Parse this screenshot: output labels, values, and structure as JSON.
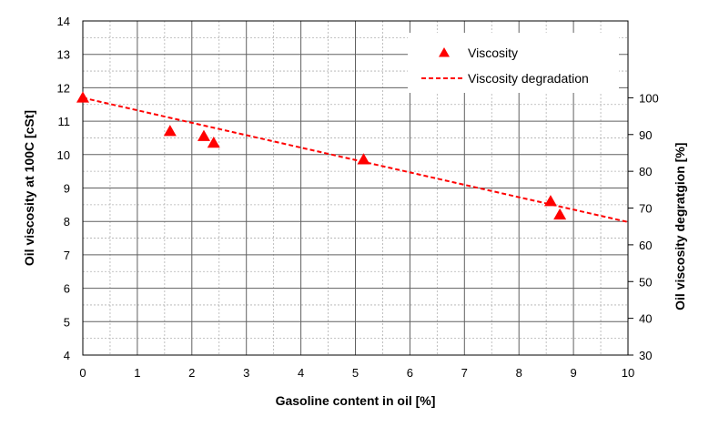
{
  "chart_data": {
    "type": "scatter",
    "xlabel": "Gasoline content in oil [%]",
    "ylabel": "Oil viscosity at 100C  [cSt]",
    "y2label": "Oil viscosity degratgion  [%]",
    "xlim": [
      0,
      10
    ],
    "ylim": [
      4,
      14
    ],
    "y2lim": [
      30,
      100
    ],
    "x_ticks": [
      "0",
      "1",
      "2",
      "3",
      "4",
      "5",
      "6",
      "7",
      "8",
      "9",
      "10"
    ],
    "y_ticks": [
      "4",
      "5",
      "6",
      "7",
      "8",
      "9",
      "10",
      "11",
      "12",
      "13",
      "14"
    ],
    "y2_ticks": [
      "30",
      "40",
      "50",
      "60",
      "70",
      "80",
      "90",
      "100"
    ],
    "grid": true,
    "legend_position": "top-right",
    "series": [
      {
        "name": "Viscosity",
        "kind": "markers",
        "marker": "triangle",
        "color": "#ff0000",
        "points": [
          {
            "x": 0.0,
            "y": 11.7
          },
          {
            "x": 1.6,
            "y": 10.7
          },
          {
            "x": 2.22,
            "y": 10.55
          },
          {
            "x": 2.4,
            "y": 10.35
          },
          {
            "x": 5.15,
            "y": 9.85
          },
          {
            "x": 8.58,
            "y": 8.6
          },
          {
            "x": 8.75,
            "y": 8.2
          }
        ]
      },
      {
        "name": "Viscosity degradation",
        "kind": "dashed-line",
        "color": "#ff0000",
        "axis": "y2",
        "points": [
          {
            "x": 0,
            "y": 100
          },
          {
            "x": 2,
            "y": 93.2
          },
          {
            "x": 10,
            "y": 66.2
          }
        ]
      }
    ]
  }
}
